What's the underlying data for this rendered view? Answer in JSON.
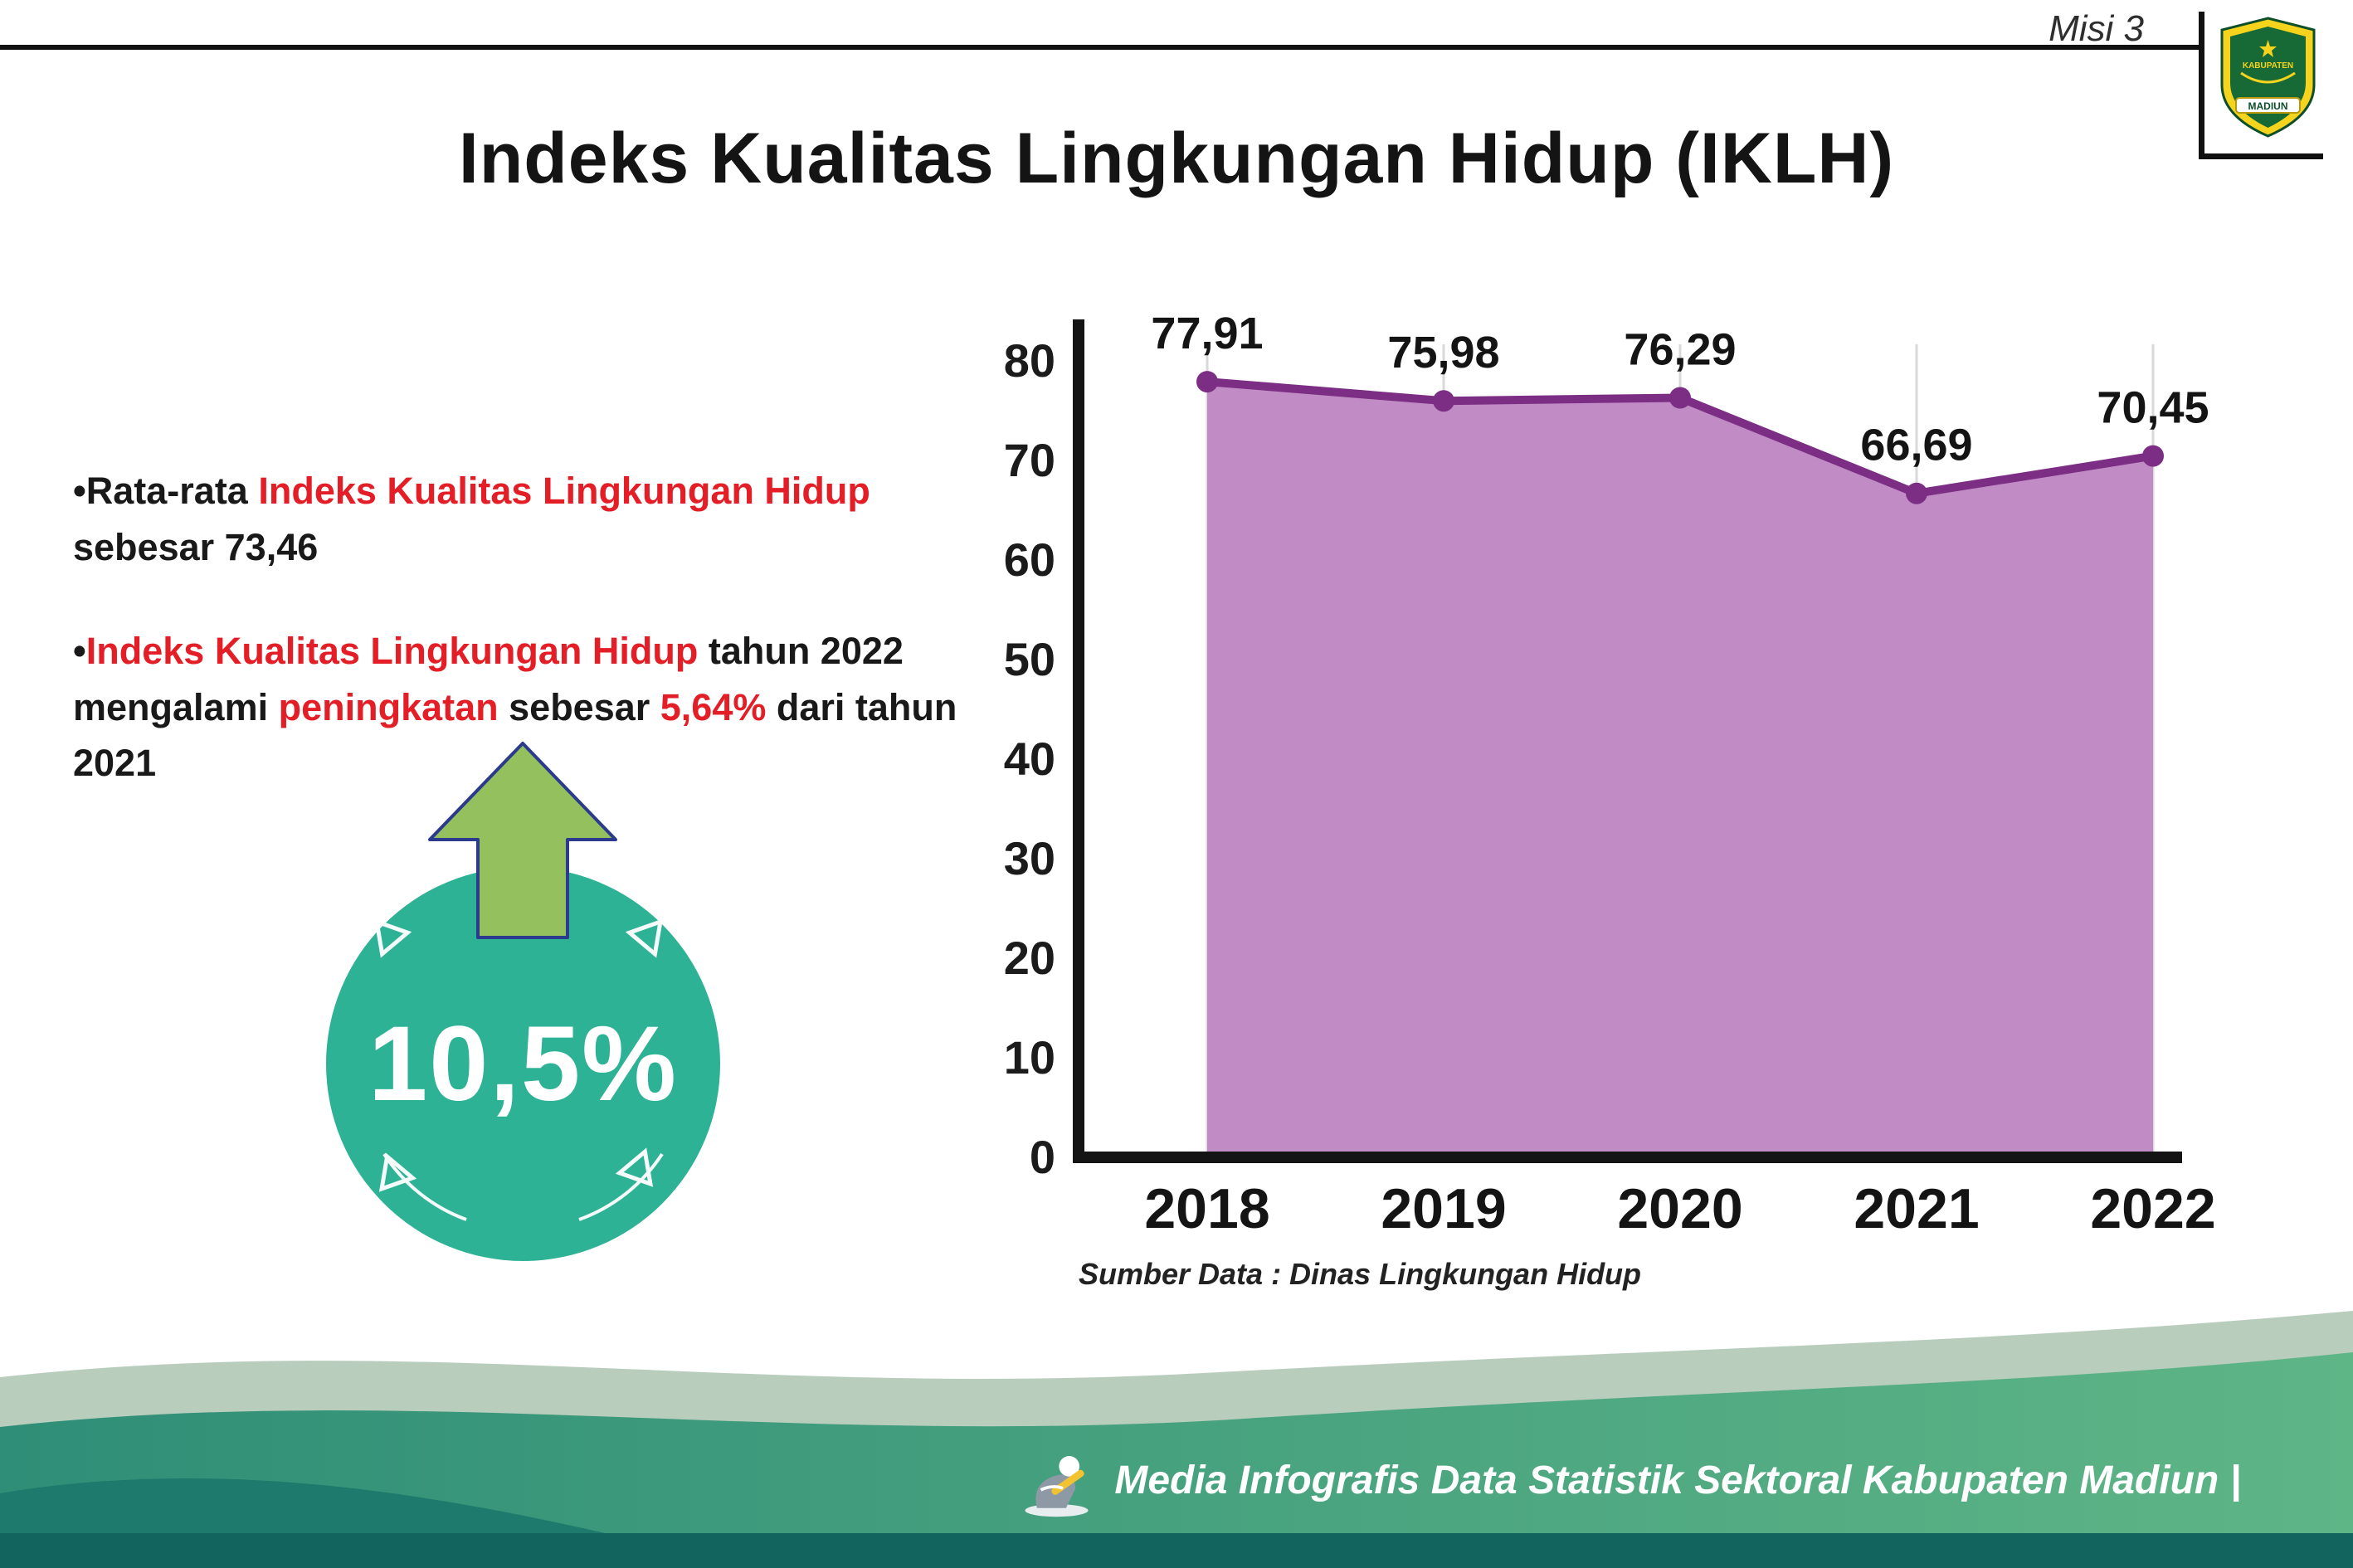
{
  "header": {
    "misi_label": "Misi 3",
    "title": "Indeks Kualitas Lingkungan Hidup (IKLH)",
    "logo": {
      "top_text": "KABUPATEN",
      "bottom_text": "MADIUN"
    }
  },
  "bullets_marker": "•",
  "bullets": [
    {
      "segments": [
        {
          "text": "Rata-rata "
        },
        {
          "text": "Indeks Kualitas Lingkungan Hidup",
          "red": true
        },
        {
          "text": " sebesar 73,46"
        }
      ]
    },
    {
      "segments": [
        {
          "text": "Indeks Kualitas Lingkungan Hidup",
          "red": true
        },
        {
          "text": " tahun 2022 mengalami "
        },
        {
          "text": "peningkatan",
          "red": true
        },
        {
          "text": " sebesar "
        },
        {
          "text": "5,64%",
          "red": true
        },
        {
          "text": " dari tahun 2021"
        }
      ]
    }
  ],
  "badge": {
    "value": "10,5%"
  },
  "chart_data": {
    "type": "area",
    "title": "",
    "categories": [
      "2018",
      "2019",
      "2020",
      "2021",
      "2022"
    ],
    "values": [
      77.91,
      75.98,
      76.29,
      66.69,
      70.45
    ],
    "value_labels": [
      "77,91",
      "75,98",
      "76,29",
      "66,69",
      "70,45"
    ],
    "ylim": [
      0,
      80
    ],
    "yticks": [
      0,
      10,
      20,
      30,
      40,
      50,
      60,
      70,
      80
    ],
    "grid": "vertical-light",
    "legend": "none",
    "line_color": "#7b2e83",
    "fill_color": "#c18cc5",
    "source": "Sumber Data : Dinas Lingkungan Hidup"
  },
  "footer": {
    "credit": "Media Infografis Data Statistik Sektoral Kabupaten Madiun |"
  },
  "colors": {
    "accent_red": "#e31e26",
    "badge_teal": "#2eb296",
    "arrow_green": "#95c05e",
    "chart_line": "#7b2e83",
    "chart_fill": "#c18cc5",
    "footer_green": "#4aa57e",
    "footer_dark": "#11655e"
  }
}
